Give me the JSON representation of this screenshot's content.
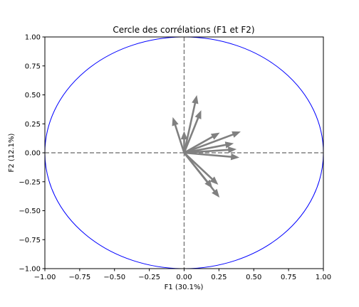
{
  "chart_data": {
    "type": "scatter",
    "title": "Cercle des corrélations (F1 et F2)",
    "xlabel": "F1 (30.1%)",
    "ylabel": "F2 (12.1%)",
    "xlim": [
      -1.0,
      1.0
    ],
    "ylim": [
      -1.0,
      1.0
    ],
    "xticks": [
      "−1.00",
      "−0.75",
      "−0.50",
      "−0.25",
      "0.00",
      "0.25",
      "0.50",
      "0.75",
      "1.00"
    ],
    "yticks": [
      "−1.00",
      "−0.75",
      "−0.50",
      "−0.25",
      "0.00",
      "0.25",
      "0.50",
      "0.75",
      "1.00"
    ],
    "grid": false,
    "reference_lines": [
      {
        "axis": "x",
        "value": 0
      },
      {
        "axis": "y",
        "value": 0
      }
    ],
    "circle": {
      "radius": 1.0,
      "color": "#0000ff"
    },
    "arrow_color": "#808080",
    "reference_line_color": "#808080",
    "vectors": [
      {
        "x": 0.09,
        "y": 0.49
      },
      {
        "x": 0.12,
        "y": 0.36
      },
      {
        "x": -0.08,
        "y": 0.3
      },
      {
        "x": 0.0,
        "y": 0.18
      },
      {
        "x": 0.25,
        "y": 0.17
      },
      {
        "x": 0.4,
        "y": 0.18
      },
      {
        "x": 0.35,
        "y": 0.08
      },
      {
        "x": 0.37,
        "y": 0.03
      },
      {
        "x": 0.39,
        "y": -0.04
      },
      {
        "x": 0.24,
        "y": -0.27
      },
      {
        "x": 0.2,
        "y": -0.3
      },
      {
        "x": 0.25,
        "y": -0.38
      }
    ]
  }
}
